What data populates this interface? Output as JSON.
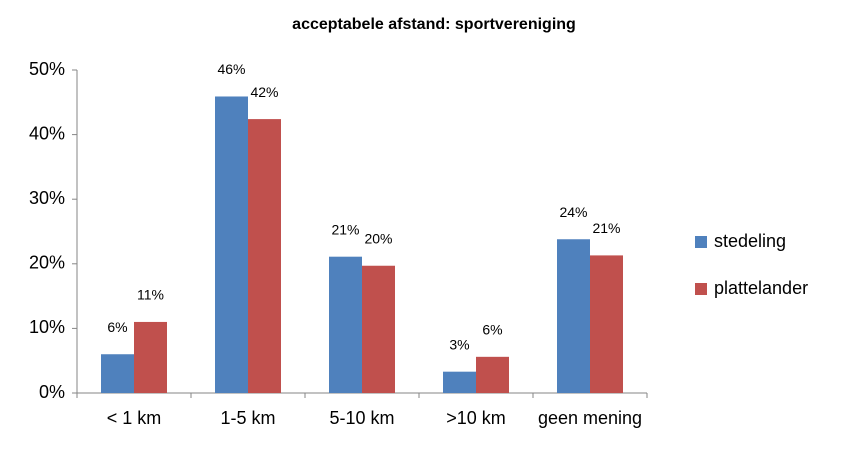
{
  "chart_data": {
    "type": "bar",
    "title": "acceptabele afstand: sportvereniging",
    "categories": [
      "< 1 km",
      "1-5 km",
      "5-10 km",
      ">10 km",
      "geen mening"
    ],
    "series": [
      {
        "name": "stedeling",
        "color": "#4f81bd",
        "values": [
          6,
          45.9,
          21.1,
          3.3,
          23.8
        ],
        "value_labels": [
          "6%",
          "46%",
          "21%",
          "3%",
          "24%"
        ]
      },
      {
        "name": "plattelander",
        "color": "#c0504d",
        "values": [
          11,
          42.4,
          19.7,
          5.6,
          21.3
        ],
        "value_labels": [
          "11%",
          "42%",
          "20%",
          "6%",
          "21%"
        ]
      }
    ],
    "ylim": [
      0,
      50
    ],
    "yticks": [
      {
        "value": 0,
        "label": "0%"
      },
      {
        "value": 10,
        "label": "10%"
      },
      {
        "value": 20,
        "label": "20%"
      },
      {
        "value": 30,
        "label": "30%"
      },
      {
        "value": 40,
        "label": "40%"
      },
      {
        "value": 50,
        "label": "50%"
      }
    ],
    "grid": false,
    "legend": "right"
  }
}
